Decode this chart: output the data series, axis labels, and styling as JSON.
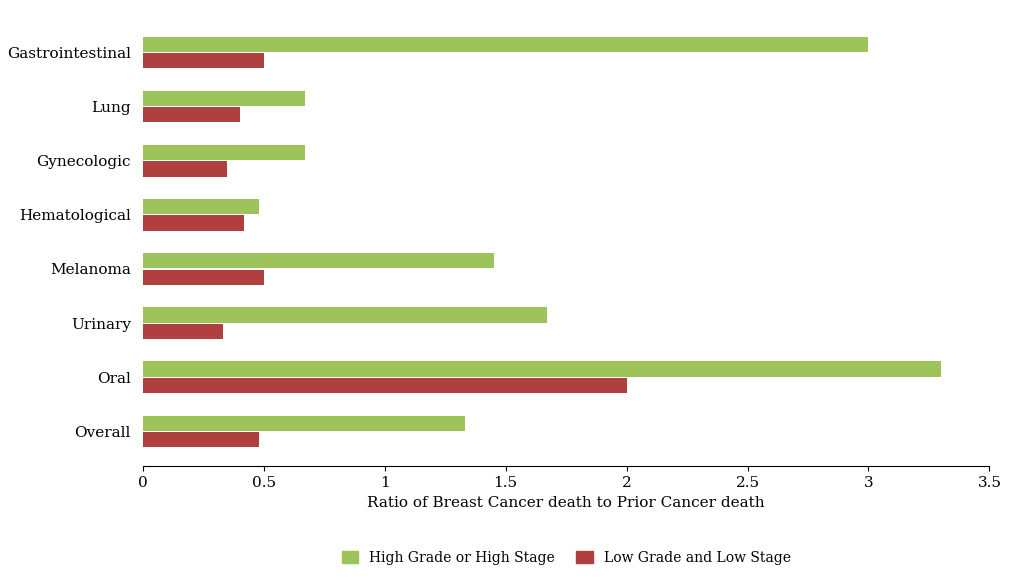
{
  "categories": [
    "Gastrointestinal",
    "Lung",
    "Gynecologic",
    "Hematological",
    "Melanoma",
    "Urinary",
    "Oral",
    "Overall"
  ],
  "high_grade": [
    3.0,
    0.67,
    0.67,
    0.48,
    1.45,
    1.67,
    3.3,
    1.33
  ],
  "low_grade": [
    0.5,
    0.4,
    0.35,
    0.42,
    0.5,
    0.33,
    2.0,
    0.48
  ],
  "high_color": "#9DC45B",
  "low_color": "#B04040",
  "xlabel": "Ratio of Breast Cancer death to Prior Cancer death",
  "xlim": [
    0,
    3.5
  ],
  "xticks": [
    0,
    0.5,
    1,
    1.5,
    2,
    2.5,
    3,
    3.5
  ],
  "xtick_labels": [
    "0",
    "0.5",
    "1",
    "1.5",
    "2",
    "2.5",
    "3",
    "3.5"
  ],
  "legend_high": "High Grade or High Stage",
  "legend_low": "Low Grade and Low Stage",
  "bar_height": 0.28,
  "bar_gap": 0.02,
  "background_color": "#ffffff"
}
